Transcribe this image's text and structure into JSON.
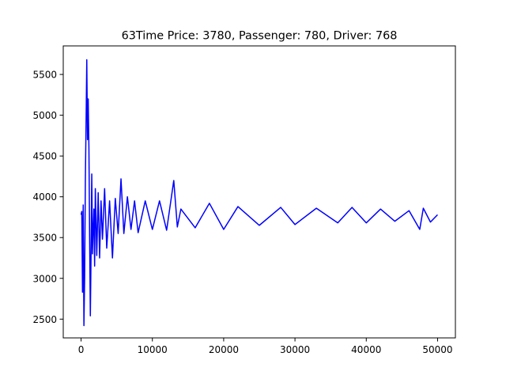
{
  "chart_data": {
    "type": "line",
    "title": "63Time Price: 3780, Passenger: 780, Driver: 768",
    "xlabel": "",
    "ylabel": "",
    "xlim": [
      -2500,
      52500
    ],
    "ylim": [
      2270,
      5850
    ],
    "x_ticks": [
      0,
      10000,
      20000,
      30000,
      40000,
      50000
    ],
    "x_tick_labels": [
      "0",
      "10000",
      "20000",
      "30000",
      "40000",
      "50000"
    ],
    "y_ticks": [
      2500,
      3000,
      3500,
      4000,
      4500,
      5000,
      5500
    ],
    "y_tick_labels": [
      "2500",
      "3000",
      "3500",
      "4000",
      "4500",
      "5000",
      "5500"
    ],
    "grid": false,
    "legend": "none",
    "series": [
      {
        "color": "#0000ff",
        "x": [
          0,
          100,
          200,
          300,
          400,
          500,
          600,
          700,
          800,
          900,
          1000,
          1100,
          1200,
          1300,
          1400,
          1500,
          1600,
          1700,
          1800,
          1900,
          2000,
          2200,
          2400,
          2600,
          2800,
          3000,
          3300,
          3600,
          4000,
          4400,
          4800,
          5200,
          5600,
          6000,
          6500,
          7000,
          7500,
          8000,
          9000,
          10000,
          11000,
          12000,
          13000,
          13500,
          14000,
          16000,
          18000,
          20000,
          22000,
          25000,
          28000,
          30000,
          33000,
          36000,
          38000,
          40000,
          42000,
          44000,
          46000,
          47500,
          48000,
          49000,
          50000
        ],
        "y": [
          3780,
          3820,
          2830,
          3900,
          2420,
          3000,
          4200,
          4900,
          5680,
          4700,
          5200,
          4600,
          3500,
          2540,
          3300,
          4280,
          3300,
          3600,
          3850,
          3150,
          4100,
          3280,
          4050,
          3250,
          3950,
          3480,
          4100,
          3370,
          3950,
          3250,
          3980,
          3550,
          4220,
          3550,
          4000,
          3600,
          3950,
          3560,
          3950,
          3600,
          3950,
          3590,
          4200,
          3630,
          3850,
          3620,
          3920,
          3600,
          3880,
          3650,
          3870,
          3660,
          3860,
          3680,
          3870,
          3680,
          3850,
          3700,
          3830,
          3600,
          3860,
          3690,
          3780
        ]
      }
    ]
  }
}
